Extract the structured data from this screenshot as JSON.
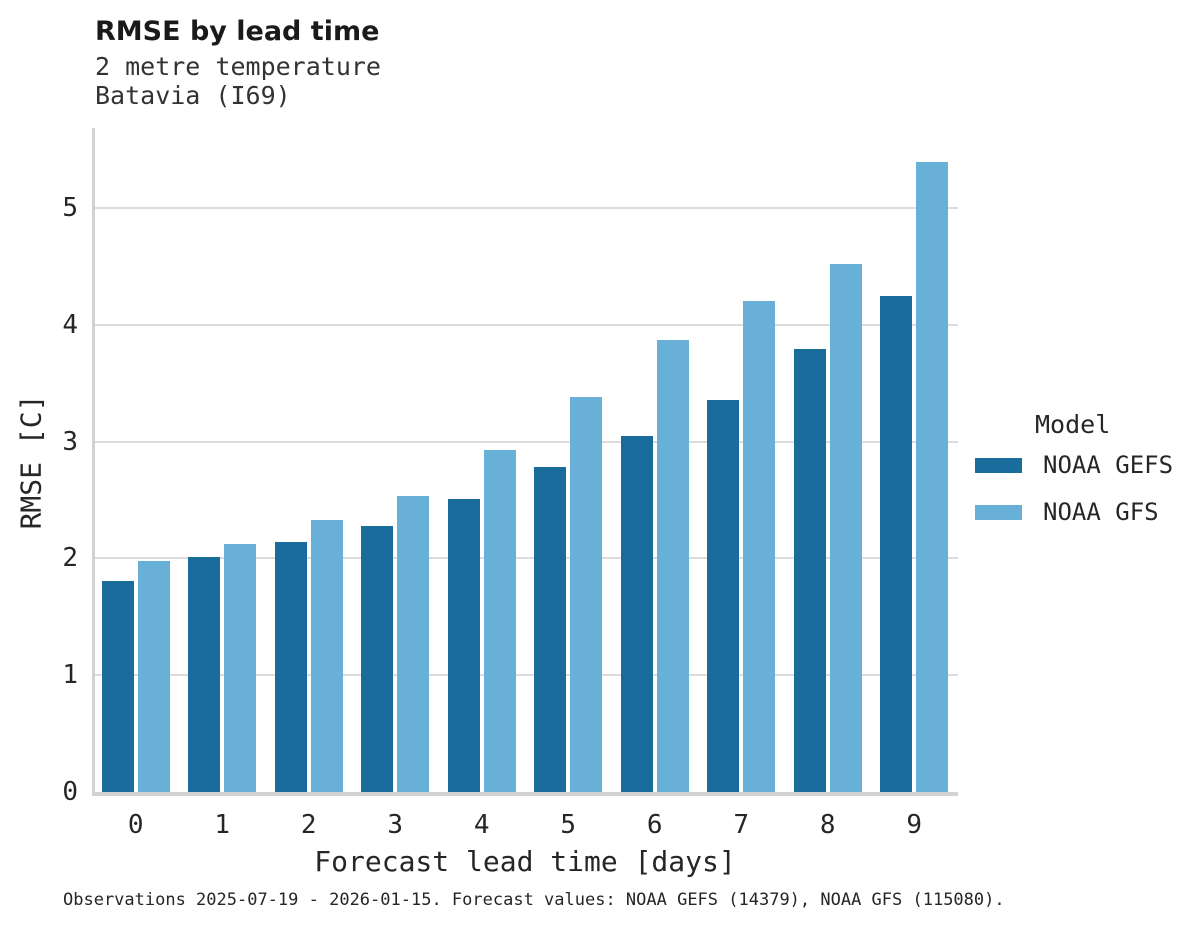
{
  "header": {
    "title": "RMSE by lead time",
    "subtitle_line1": "2 metre temperature",
    "subtitle_line2": "Batavia (I69)"
  },
  "legend": {
    "title": "Model"
  },
  "caption": "Observations 2025-07-19 - 2026-01-15. Forecast values: NOAA GEFS (14379), NOAA GFS (115080).",
  "colors": {
    "gefs_bar": "#1a6c9c",
    "gfs_bar": "#69b0d8",
    "gridline": "#dcdcdc",
    "spine": "#d2d2d2",
    "text": "#262626"
  },
  "chart_data": {
    "type": "bar",
    "title": "RMSE by lead time",
    "subtitle": [
      "2 metre temperature",
      "Batavia (I69)"
    ],
    "xlabel": "Forecast lead time [days]",
    "ylabel": "RMSE [C]",
    "categories": [
      "0",
      "1",
      "2",
      "3",
      "4",
      "5",
      "6",
      "7",
      "8",
      "9"
    ],
    "series": [
      {
        "name": "NOAA GEFS",
        "color": "#1a6c9c",
        "values": [
          1.81,
          2.01,
          2.14,
          2.28,
          2.51,
          2.78,
          3.05,
          3.36,
          3.79,
          4.25
        ]
      },
      {
        "name": "NOAA GFS",
        "color": "#69b0d8",
        "values": [
          1.98,
          2.12,
          2.33,
          2.53,
          2.93,
          3.38,
          3.87,
          4.2,
          4.52,
          5.39
        ]
      }
    ],
    "ylim": [
      0,
      5.67
    ],
    "yticks": [
      0,
      1,
      2,
      3,
      4,
      5
    ],
    "grid": true,
    "legend_title": "Model",
    "legend_position": "right-center"
  }
}
